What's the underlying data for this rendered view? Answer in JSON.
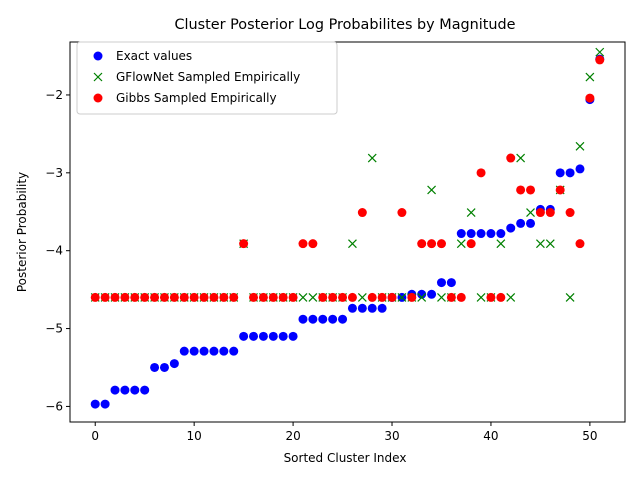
{
  "chart_data": {
    "type": "scatter",
    "title": "Cluster Posterior Log Probabilites by Magnitude",
    "xlabel": "Sorted Cluster Index",
    "ylabel": "Posterior Probability",
    "xlim": [
      -2.55,
      53.55
    ],
    "ylim": [
      -6.2,
      -1.32
    ],
    "xticks": [
      0,
      10,
      20,
      30,
      40,
      50
    ],
    "xtick_labels": [
      "0",
      "10",
      "20",
      "30",
      "40",
      "50"
    ],
    "yticks": [
      -6,
      -5,
      -4,
      -3,
      -2
    ],
    "ytick_labels": [
      "−6",
      "−5",
      "−4",
      "−3",
      "−2"
    ],
    "grid": false,
    "legend_position": "upper-left",
    "series": [
      {
        "name": "Exact values",
        "marker": "circle",
        "color": "#0000ff",
        "x": [
          0,
          1,
          2,
          3,
          4,
          5,
          6,
          7,
          8,
          9,
          10,
          11,
          12,
          13,
          14,
          15,
          16,
          17,
          18,
          19,
          20,
          21,
          22,
          23,
          24,
          25,
          26,
          27,
          28,
          29,
          30,
          31,
          32,
          33,
          34,
          35,
          36,
          37,
          38,
          39,
          40,
          41,
          42,
          43,
          44,
          45,
          46,
          47,
          48,
          49,
          50,
          51
        ],
        "y": [
          -5.97,
          -5.97,
          -5.79,
          -5.79,
          -5.79,
          -5.79,
          -5.5,
          -5.5,
          -5.45,
          -5.29,
          -5.29,
          -5.29,
          -5.29,
          -5.29,
          -5.29,
          -5.1,
          -5.1,
          -5.1,
          -5.1,
          -5.1,
          -5.1,
          -4.88,
          -4.88,
          -4.88,
          -4.88,
          -4.88,
          -4.74,
          -4.74,
          -4.74,
          -4.74,
          -4.6,
          -4.6,
          -4.56,
          -4.56,
          -4.56,
          -4.41,
          -4.41,
          -3.78,
          -3.78,
          -3.78,
          -3.78,
          -3.78,
          -3.71,
          -3.65,
          -3.65,
          -3.47,
          -3.47,
          -3.0,
          -3.0,
          -2.95,
          -2.06,
          -1.54
        ]
      },
      {
        "name": "GFlowNet Sampled Empirically",
        "marker": "x",
        "color": "#008000",
        "x": [
          0,
          1,
          2,
          3,
          4,
          5,
          6,
          7,
          8,
          9,
          10,
          11,
          12,
          13,
          14,
          15,
          16,
          17,
          18,
          19,
          20,
          21,
          22,
          23,
          24,
          25,
          26,
          27,
          28,
          29,
          30,
          31,
          32,
          33,
          34,
          35,
          36,
          37,
          38,
          39,
          40,
          41,
          42,
          43,
          44,
          45,
          46,
          47,
          48,
          49,
          50,
          51
        ],
        "y": [
          -4.6,
          -4.6,
          -4.6,
          -4.6,
          -4.6,
          -4.6,
          -4.6,
          -4.6,
          -4.6,
          -4.6,
          -4.6,
          -4.6,
          -4.6,
          -4.6,
          -4.6,
          -3.91,
          -4.6,
          -4.6,
          -4.6,
          -4.6,
          -4.6,
          -4.6,
          -4.6,
          -4.6,
          -4.6,
          -4.6,
          -3.91,
          -4.6,
          -2.81,
          -4.6,
          -4.6,
          -4.6,
          -4.6,
          -4.6,
          -3.22,
          -4.6,
          -4.6,
          -3.91,
          -3.51,
          -4.6,
          -4.6,
          -3.91,
          -4.6,
          -2.81,
          -3.51,
          -3.91,
          -3.91,
          -3.22,
          -4.6,
          -2.66,
          -1.77,
          -1.45
        ]
      },
      {
        "name": "Gibbs Sampled Empirically",
        "marker": "circle",
        "color": "#ff0000",
        "x": [
          0,
          1,
          2,
          3,
          4,
          5,
          6,
          7,
          8,
          9,
          10,
          11,
          12,
          13,
          14,
          15,
          16,
          17,
          18,
          19,
          20,
          21,
          22,
          23,
          24,
          25,
          26,
          27,
          28,
          29,
          30,
          31,
          32,
          33,
          34,
          35,
          36,
          37,
          38,
          39,
          40,
          41,
          42,
          43,
          44,
          45,
          46,
          47,
          48,
          49,
          50,
          51
        ],
        "y": [
          -4.6,
          -4.6,
          -4.6,
          -4.6,
          -4.6,
          -4.6,
          -4.6,
          -4.6,
          -4.6,
          -4.6,
          -4.6,
          -4.6,
          -4.6,
          -4.6,
          -4.6,
          -3.91,
          -4.6,
          -4.6,
          -4.6,
          -4.6,
          -4.6,
          -3.91,
          -3.91,
          -4.6,
          -4.6,
          -4.6,
          -4.6,
          -3.51,
          -4.6,
          -4.6,
          -4.6,
          -3.51,
          -4.6,
          -3.91,
          -3.91,
          -3.91,
          -4.6,
          -4.6,
          -3.91,
          -3.0,
          -4.6,
          -4.6,
          -2.81,
          -3.22,
          -3.22,
          -3.51,
          -3.51,
          -3.22,
          -3.51,
          -3.91,
          -2.04,
          -1.55
        ]
      }
    ]
  }
}
